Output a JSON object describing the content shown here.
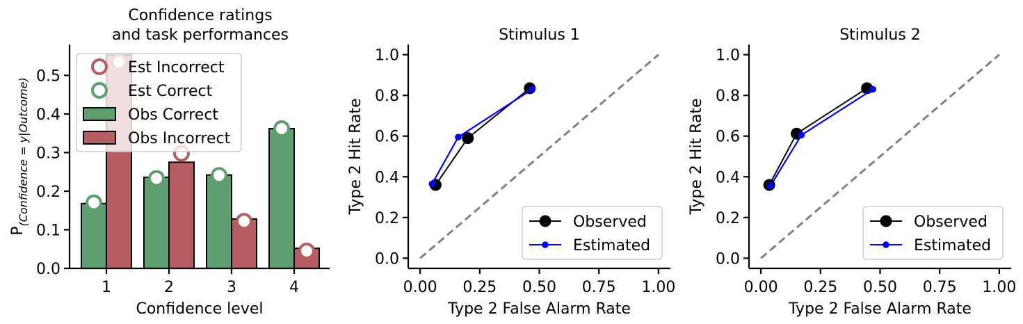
{
  "chart_data": [
    {
      "type": "bar",
      "title": "Confidence ratings\nand task performances",
      "xlabel": "Confidence level",
      "ylabel": "P",
      "ylabel_subscript": "(Confidence = y|Outcome)",
      "categories": [
        "1",
        "2",
        "3",
        "4"
      ],
      "ylim": [
        0,
        0.58
      ],
      "yticks": [
        "0.0",
        "0.1",
        "0.2",
        "0.3",
        "0.4",
        "0.5"
      ],
      "grid": false,
      "legend_position": "top-left",
      "bar_series": [
        {
          "name": "Obs Correct",
          "color": "#5f9e6e",
          "values": [
            0.168,
            0.236,
            0.242,
            0.362
          ]
        },
        {
          "name": "Obs Incorrect",
          "color": "#b55d60",
          "values": [
            0.553,
            0.275,
            0.128,
            0.052
          ]
        }
      ],
      "marker_series": [
        {
          "name": "Est Incorrect",
          "color": "#b55d60",
          "values": [
            0.535,
            0.298,
            0.122,
            0.045
          ]
        },
        {
          "name": "Est Correct",
          "color": "#5f9e6e",
          "values": [
            0.17,
            0.233,
            0.241,
            0.362
          ]
        }
      ],
      "legend_order": [
        "Est Incorrect",
        "Est Correct",
        "Obs Correct",
        "Obs Incorrect"
      ]
    },
    {
      "type": "line",
      "title": "Stimulus 1",
      "xlabel": "Type 2 False Alarm Rate",
      "ylabel": "Type 2 Hit Rate",
      "xlim": [
        -0.05,
        1.05
      ],
      "ylim": [
        -0.05,
        1.05
      ],
      "xticks": [
        "0.00",
        "0.25",
        "0.50",
        "0.75",
        "1.00"
      ],
      "yticks": [
        "0.0",
        "0.2",
        "0.4",
        "0.6",
        "0.8",
        "1.0"
      ],
      "grid": false,
      "legend_position": "bottom-right",
      "diagonal": true,
      "series": [
        {
          "name": "Observed",
          "color": "#000000",
          "x": [
            0.065,
            0.2,
            0.46
          ],
          "y": [
            0.36,
            0.59,
            0.835
          ]
        },
        {
          "name": "Estimated",
          "color": "#0000ff",
          "x": [
            0.05,
            0.16,
            0.47
          ],
          "y": [
            0.365,
            0.595,
            0.83
          ]
        }
      ]
    },
    {
      "type": "line",
      "title": "Stimulus 2",
      "xlabel": "Type 2 False Alarm Rate",
      "ylabel": "Type 2 Hit Rate",
      "xlim": [
        -0.05,
        1.05
      ],
      "ylim": [
        -0.05,
        1.05
      ],
      "xticks": [
        "0.00",
        "0.25",
        "0.50",
        "0.75",
        "1.00"
      ],
      "yticks": [
        "0.0",
        "0.2",
        "0.4",
        "0.6",
        "0.8",
        "1.0"
      ],
      "grid": false,
      "legend_position": "bottom-right",
      "diagonal": true,
      "series": [
        {
          "name": "Observed",
          "color": "#000000",
          "x": [
            0.035,
            0.15,
            0.445
          ],
          "y": [
            0.36,
            0.612,
            0.835
          ]
        },
        {
          "name": "Estimated",
          "color": "#0000ff",
          "x": [
            0.04,
            0.17,
            0.47
          ],
          "y": [
            0.355,
            0.605,
            0.83
          ]
        }
      ]
    }
  ]
}
